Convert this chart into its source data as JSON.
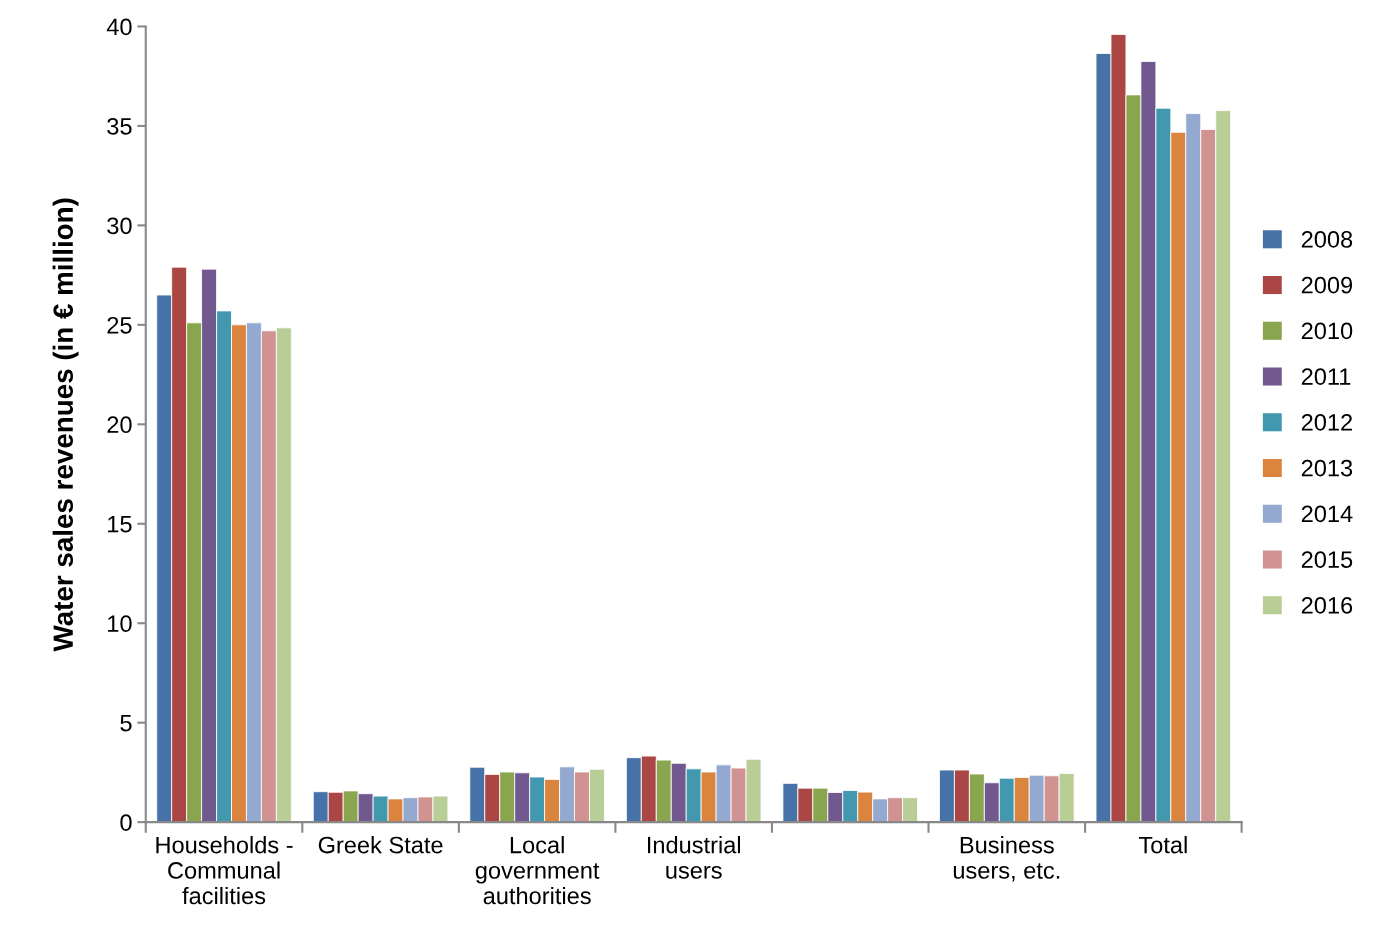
{
  "chart_data": {
    "type": "bar",
    "ylabel": "Water sales revenues (in € million)",
    "categories": [
      "Households -\nCommunal\nfacilities",
      "Greek State",
      "Local\ngovernment\nauthorities",
      "Industrial\nusers",
      null,
      "Business\nusers, etc.",
      "Total"
    ],
    "series": [
      {
        "name": "2008",
        "color": "#4672a8",
        "values": [
          26.5,
          1.53,
          2.76,
          3.24,
          1.95,
          2.62,
          38.64
        ]
      },
      {
        "name": "2009",
        "color": "#aa4643",
        "values": [
          27.9,
          1.5,
          2.4,
          3.32,
          1.71,
          2.62,
          39.6
        ]
      },
      {
        "name": "2010",
        "color": "#89a54e",
        "values": [
          25.1,
          1.57,
          2.52,
          3.12,
          1.71,
          2.42,
          36.56
        ]
      },
      {
        "name": "2011",
        "color": "#71588f",
        "values": [
          27.8,
          1.43,
          2.48,
          2.96,
          1.49,
          1.98,
          38.24
        ]
      },
      {
        "name": "2012",
        "color": "#4198af",
        "values": [
          25.7,
          1.31,
          2.27,
          2.68,
          1.59,
          2.21,
          35.89
        ]
      },
      {
        "name": "2013",
        "color": "#db843d",
        "values": [
          25.0,
          1.17,
          2.15,
          2.52,
          1.51,
          2.25,
          34.68
        ]
      },
      {
        "name": "2014",
        "color": "#93a9cf",
        "values": [
          25.1,
          1.23,
          2.78,
          2.88,
          1.17,
          2.36,
          35.62
        ]
      },
      {
        "name": "2015",
        "color": "#d19392",
        "values": [
          24.7,
          1.27,
          2.52,
          2.72,
          1.23,
          2.33,
          34.82
        ]
      },
      {
        "name": "2016",
        "color": "#b9cd96",
        "values": [
          24.85,
          1.31,
          2.66,
          3.16,
          1.23,
          2.45,
          35.77
        ]
      }
    ],
    "ylim": [
      0,
      40
    ],
    "yticks": [
      0,
      5,
      10,
      15,
      20,
      25,
      30,
      35,
      40
    ],
    "grid": false,
    "legend": "right"
  }
}
